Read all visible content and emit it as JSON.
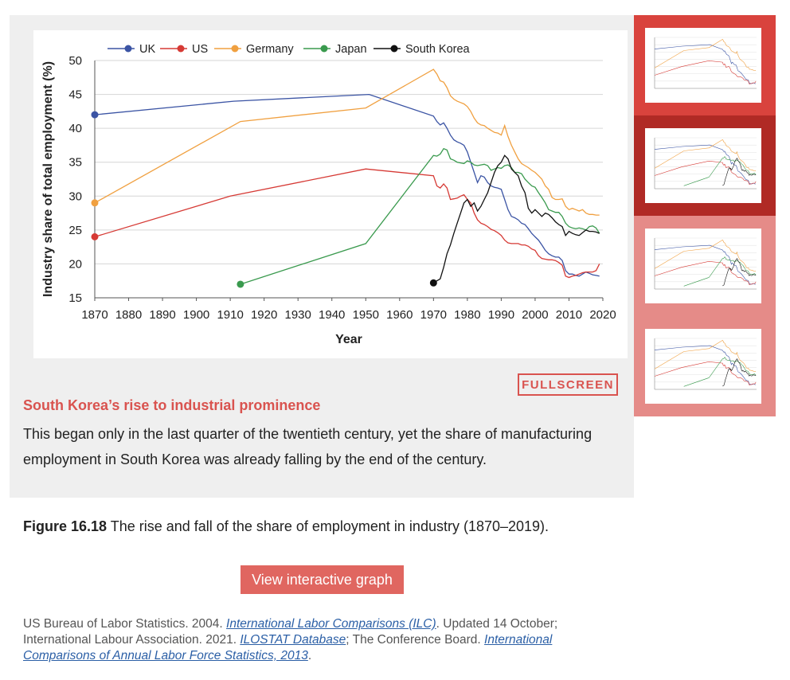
{
  "chart_data": {
    "type": "line",
    "xlabel": "Year",
    "ylabel": "Industry share of total employment (%)",
    "xlim": [
      1870,
      2020
    ],
    "ylim": [
      15,
      50
    ],
    "x_ticks": [
      1870,
      1880,
      1890,
      1900,
      1910,
      1920,
      1930,
      1940,
      1950,
      1960,
      1970,
      1980,
      1990,
      2000,
      2010,
      2020
    ],
    "y_ticks": [
      15,
      20,
      25,
      30,
      35,
      40,
      45,
      50
    ],
    "grid": "horizontal",
    "legend_position": "top",
    "series": [
      {
        "name": "UK",
        "color": "#3b54a4",
        "points": [
          [
            1870,
            42
          ],
          [
            1911,
            44
          ],
          [
            1951,
            45
          ],
          [
            1970,
            41.8
          ],
          [
            1971,
            41
          ],
          [
            1972,
            40.5
          ],
          [
            1973,
            40.8
          ],
          [
            1974,
            40
          ],
          [
            1975,
            39
          ],
          [
            1976,
            38.3
          ],
          [
            1977,
            38
          ],
          [
            1978,
            37.8
          ],
          [
            1979,
            37.5
          ],
          [
            1980,
            36.5
          ],
          [
            1981,
            35
          ],
          [
            1982,
            33.5
          ],
          [
            1983,
            32
          ],
          [
            1984,
            33
          ],
          [
            1985,
            32.8
          ],
          [
            1986,
            32
          ],
          [
            1987,
            31.5
          ],
          [
            1988,
            31.3
          ],
          [
            1989,
            31.2
          ],
          [
            1990,
            31
          ],
          [
            1991,
            29.5
          ],
          [
            1992,
            28
          ],
          [
            1993,
            27
          ],
          [
            1994,
            26.8
          ],
          [
            1995,
            26.5
          ],
          [
            1996,
            26
          ],
          [
            1997,
            25.8
          ],
          [
            1998,
            25.2
          ],
          [
            1999,
            24.5
          ],
          [
            2000,
            24
          ],
          [
            2001,
            23.5
          ],
          [
            2002,
            22.8
          ],
          [
            2003,
            22
          ],
          [
            2004,
            21.5
          ],
          [
            2005,
            21.2
          ],
          [
            2006,
            21
          ],
          [
            2007,
            21
          ],
          [
            2008,
            20.5
          ],
          [
            2009,
            19
          ],
          [
            2010,
            18.5
          ],
          [
            2011,
            18.5
          ],
          [
            2012,
            18.3
          ],
          [
            2013,
            18.2
          ],
          [
            2014,
            18.5
          ],
          [
            2015,
            18.8
          ],
          [
            2016,
            18.6
          ],
          [
            2017,
            18.4
          ],
          [
            2018,
            18.3
          ],
          [
            2019,
            18.2
          ]
        ]
      },
      {
        "name": "US",
        "color": "#d63a35",
        "points": [
          [
            1870,
            24
          ],
          [
            1910,
            30
          ],
          [
            1950,
            34
          ],
          [
            1970,
            33
          ],
          [
            1971,
            31.5
          ],
          [
            1972,
            31.2
          ],
          [
            1973,
            31.8
          ],
          [
            1974,
            31.2
          ],
          [
            1975,
            29.5
          ],
          [
            1976,
            29.6
          ],
          [
            1977,
            29.7
          ],
          [
            1978,
            30
          ],
          [
            1979,
            30.2
          ],
          [
            1980,
            29.5
          ],
          [
            1981,
            29
          ],
          [
            1982,
            27.5
          ],
          [
            1983,
            26.5
          ],
          [
            1984,
            26
          ],
          [
            1985,
            25.8
          ],
          [
            1986,
            25.5
          ],
          [
            1987,
            25.1
          ],
          [
            1988,
            24.9
          ],
          [
            1989,
            24.6
          ],
          [
            1990,
            24.2
          ],
          [
            1991,
            23.5
          ],
          [
            1992,
            23.1
          ],
          [
            1993,
            23
          ],
          [
            1994,
            23
          ],
          [
            1995,
            23
          ],
          [
            1996,
            22.8
          ],
          [
            1997,
            22.8
          ],
          [
            1998,
            22.6
          ],
          [
            1999,
            22.2
          ],
          [
            2000,
            22
          ],
          [
            2001,
            21.2
          ],
          [
            2002,
            20.8
          ],
          [
            2003,
            20.7
          ],
          [
            2004,
            20.6
          ],
          [
            2005,
            20.6
          ],
          [
            2006,
            20.5
          ],
          [
            2007,
            20.2
          ],
          [
            2008,
            19.8
          ],
          [
            2009,
            18.2
          ],
          [
            2010,
            18
          ],
          [
            2011,
            18.2
          ],
          [
            2012,
            18.3
          ],
          [
            2013,
            18.5
          ],
          [
            2014,
            18.7
          ],
          [
            2015,
            18.8
          ],
          [
            2016,
            18.8
          ],
          [
            2017,
            18.8
          ],
          [
            2018,
            19
          ],
          [
            2019,
            20
          ]
        ]
      },
      {
        "name": "Germany",
        "color": "#f0a040",
        "points": [
          [
            1870,
            29
          ],
          [
            1913,
            41
          ],
          [
            1950,
            43
          ],
          [
            1970,
            48.7
          ],
          [
            1971,
            48
          ],
          [
            1972,
            47
          ],
          [
            1973,
            46.8
          ],
          [
            1974,
            46
          ],
          [
            1975,
            44.8
          ],
          [
            1976,
            44.3
          ],
          [
            1977,
            44
          ],
          [
            1978,
            43.8
          ],
          [
            1979,
            43.6
          ],
          [
            1980,
            43.2
          ],
          [
            1981,
            42.5
          ],
          [
            1982,
            41.5
          ],
          [
            1983,
            40.8
          ],
          [
            1984,
            40.5
          ],
          [
            1985,
            40.4
          ],
          [
            1986,
            40
          ],
          [
            1987,
            39.7
          ],
          [
            1988,
            39.4
          ],
          [
            1989,
            39.3
          ],
          [
            1990,
            39
          ],
          [
            1991,
            40.4
          ],
          [
            1992,
            38.8
          ],
          [
            1993,
            37.5
          ],
          [
            1994,
            36.5
          ],
          [
            1995,
            35.5
          ],
          [
            1996,
            34.8
          ],
          [
            1997,
            34.5
          ],
          [
            1998,
            34.2
          ],
          [
            1999,
            33.8
          ],
          [
            2000,
            33.5
          ],
          [
            2001,
            33
          ],
          [
            2002,
            32.5
          ],
          [
            2003,
            31.5
          ],
          [
            2004,
            31
          ],
          [
            2005,
            29.8
          ],
          [
            2006,
            29.5
          ],
          [
            2007,
            29.5
          ],
          [
            2008,
            29.6
          ],
          [
            2009,
            28.5
          ],
          [
            2010,
            28
          ],
          [
            2011,
            28.2
          ],
          [
            2012,
            28
          ],
          [
            2013,
            27.8
          ],
          [
            2014,
            28
          ],
          [
            2015,
            27.5
          ],
          [
            2016,
            27.3
          ],
          [
            2017,
            27.3
          ],
          [
            2018,
            27.2
          ],
          [
            2019,
            27.2
          ]
        ]
      },
      {
        "name": "Japan",
        "color": "#3a9a4e",
        "points": [
          [
            1913,
            17
          ],
          [
            1950,
            23
          ],
          [
            1970,
            36
          ],
          [
            1971,
            35.9
          ],
          [
            1972,
            36.2
          ],
          [
            1973,
            37
          ],
          [
            1974,
            36.8
          ],
          [
            1975,
            35.5
          ],
          [
            1976,
            35.3
          ],
          [
            1977,
            35
          ],
          [
            1978,
            34.9
          ],
          [
            1979,
            34.8
          ],
          [
            1980,
            35.2
          ],
          [
            1981,
            35
          ],
          [
            1982,
            34.6
          ],
          [
            1983,
            34.5
          ],
          [
            1984,
            34.6
          ],
          [
            1985,
            34.7
          ],
          [
            1986,
            34.5
          ],
          [
            1987,
            33.8
          ],
          [
            1988,
            34
          ],
          [
            1989,
            34.2
          ],
          [
            1990,
            34.1
          ],
          [
            1991,
            34.5
          ],
          [
            1992,
            34.6
          ],
          [
            1993,
            34.2
          ],
          [
            1994,
            33.5
          ],
          [
            1995,
            33.5
          ],
          [
            1996,
            33.3
          ],
          [
            1997,
            32.5
          ],
          [
            1998,
            32
          ],
          [
            1999,
            31.5
          ],
          [
            2000,
            31.3
          ],
          [
            2001,
            30.5
          ],
          [
            2002,
            29.8
          ],
          [
            2003,
            29
          ],
          [
            2004,
            28
          ],
          [
            2005,
            27.8
          ],
          [
            2006,
            27.6
          ],
          [
            2007,
            27.6
          ],
          [
            2008,
            27
          ],
          [
            2009,
            26
          ],
          [
            2010,
            25.5
          ],
          [
            2011,
            25.3
          ],
          [
            2012,
            25.2
          ],
          [
            2013,
            25.3
          ],
          [
            2014,
            25.2
          ],
          [
            2015,
            25
          ],
          [
            2016,
            25.5
          ],
          [
            2017,
            25.6
          ],
          [
            2018,
            25.3
          ],
          [
            2019,
            24.5
          ]
        ]
      },
      {
        "name": "South Korea",
        "color": "#111111",
        "points": [
          [
            1970,
            17.2
          ],
          [
            1971,
            17.5
          ],
          [
            1972,
            17.8
          ],
          [
            1973,
            19.5
          ],
          [
            1974,
            21.5
          ],
          [
            1975,
            22.8
          ],
          [
            1976,
            24.5
          ],
          [
            1977,
            26
          ],
          [
            1978,
            27.5
          ],
          [
            1979,
            29
          ],
          [
            1980,
            29.5
          ],
          [
            1981,
            28.5
          ],
          [
            1982,
            29
          ],
          [
            1983,
            27.8
          ],
          [
            1984,
            28.5
          ],
          [
            1985,
            29.5
          ],
          [
            1986,
            30.5
          ],
          [
            1987,
            32
          ],
          [
            1988,
            33.5
          ],
          [
            1989,
            34.5
          ],
          [
            1990,
            35
          ],
          [
            1991,
            36
          ],
          [
            1992,
            35.5
          ],
          [
            1993,
            34
          ],
          [
            1994,
            33.5
          ],
          [
            1995,
            33
          ],
          [
            1996,
            31.5
          ],
          [
            1997,
            30.5
          ],
          [
            1998,
            28.2
          ],
          [
            1999,
            27.5
          ],
          [
            2000,
            28
          ],
          [
            2001,
            27.5
          ],
          [
            2002,
            27
          ],
          [
            2003,
            27.5
          ],
          [
            2004,
            27.3
          ],
          [
            2005,
            26.8
          ],
          [
            2006,
            26.2
          ],
          [
            2007,
            25.8
          ],
          [
            2008,
            25.5
          ],
          [
            2009,
            24.2
          ],
          [
            2010,
            24.8
          ],
          [
            2011,
            24.5
          ],
          [
            2012,
            24.3
          ],
          [
            2013,
            24.2
          ],
          [
            2014,
            24.6
          ],
          [
            2015,
            25
          ],
          [
            2016,
            24.8
          ],
          [
            2017,
            24.8
          ],
          [
            2018,
            24.7
          ],
          [
            2019,
            24.5
          ]
        ]
      }
    ],
    "start_markers": [
      {
        "series": "UK",
        "x": 1870,
        "y": 42
      },
      {
        "series": "US",
        "x": 1870,
        "y": 24
      },
      {
        "series": "Germany",
        "x": 1870,
        "y": 29
      },
      {
        "series": "Japan",
        "x": 1913,
        "y": 17
      },
      {
        "series": "South Korea",
        "x": 1970,
        "y": 17.2
      }
    ]
  },
  "caption": {
    "title": "South Korea’s rise to industrial prominence",
    "text": "This began only in the last quarter of the twentieth century, yet the share of manufacturing employment in South Korea was already falling by the end of the century."
  },
  "fullscreen_label": "FULLSCREEN",
  "thumbnails": {
    "bg_colors": [
      "#d9433d",
      "#b02a25",
      "#e58b88",
      "#e58b88"
    ],
    "selected_index": 1
  },
  "figure": {
    "number": "Figure 16.18",
    "caption": "The rise and fall of the share of employment in industry (1870–2019)."
  },
  "interactive_button": "View interactive graph",
  "sources": {
    "s1_prefix": "US Bureau of Labor Statistics. 2004. ",
    "s1_link": "International Labor Comparisons (ILC)",
    "s1_suffix": ". Updated 14 October; International Labour Association. 2021. ",
    "s2_link": "ILOSTAT Database",
    "s2_suffix": "; The Conference Board. ",
    "s3_link": "International Comparisons of Annual Labor Force Statistics, 2013",
    "s3_suffix": "."
  }
}
